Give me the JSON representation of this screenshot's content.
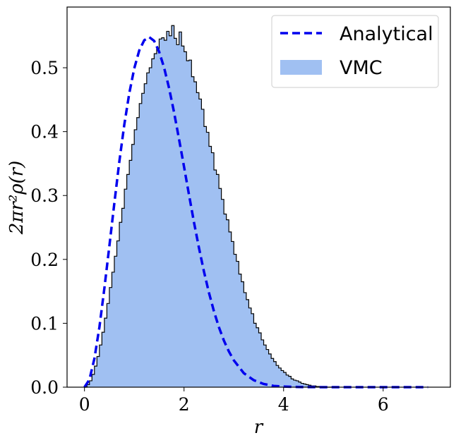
{
  "chart_data": {
    "type": "histogram",
    "xlabel": "r",
    "ylabel": "2πr²ρ(r)",
    "xlim": [
      -0.35,
      7.35
    ],
    "ylim": [
      0,
      0.595
    ],
    "xticks": [
      0,
      2,
      4,
      6
    ],
    "yticks": [
      0.0,
      0.1,
      0.2,
      0.3,
      0.4,
      0.5
    ],
    "ytick_labels": [
      "0.0",
      "0.1",
      "0.2",
      "0.3",
      "0.4",
      "0.5"
    ],
    "legend": {
      "position": "top-right",
      "entries": [
        {
          "label": "Analytical",
          "style": "dashed-line",
          "color": "#0000ee"
        },
        {
          "label": "VMC",
          "style": "filled-patch",
          "color": "#a0c0f2"
        }
      ]
    },
    "series": [
      {
        "name": "Analytical",
        "kind": "dashed-line",
        "color": "#0000ee",
        "x": [
          0,
          0.1,
          0.2,
          0.3,
          0.4,
          0.5,
          0.6,
          0.7,
          0.8,
          0.9,
          1.0,
          1.1,
          1.2,
          1.3,
          1.4,
          1.5,
          1.6,
          1.7,
          1.8,
          1.9,
          2.0,
          2.1,
          2.2,
          2.3,
          2.4,
          2.5,
          2.6,
          2.7,
          2.8,
          2.9,
          3.0,
          3.2,
          3.4,
          3.6,
          3.8,
          4.0,
          4.2,
          4.4,
          4.6,
          4.8,
          5.0,
          5.5,
          6.0,
          6.5,
          6.9
        ],
        "y": [
          0.0,
          0.012,
          0.045,
          0.094,
          0.155,
          0.221,
          0.288,
          0.353,
          0.411,
          0.46,
          0.499,
          0.527,
          0.543,
          0.548,
          0.542,
          0.525,
          0.5,
          0.468,
          0.43,
          0.388,
          0.345,
          0.301,
          0.258,
          0.218,
          0.181,
          0.148,
          0.119,
          0.094,
          0.073,
          0.056,
          0.042,
          0.022,
          0.011,
          0.005,
          0.002,
          0.001,
          0.0005,
          0.0002,
          0.0001,
          0.0,
          0.0,
          0.0,
          0.0,
          0.0,
          0.0
        ]
      },
      {
        "name": "VMC",
        "kind": "step-histogram",
        "color": "#a0c0f2",
        "edge_color": "#000000",
        "bin_width": 0.05,
        "x_start": 0.0,
        "values": [
          0.0,
          0.004,
          0.01,
          0.02,
          0.033,
          0.048,
          0.066,
          0.086,
          0.108,
          0.131,
          0.156,
          0.18,
          0.205,
          0.229,
          0.258,
          0.28,
          0.31,
          0.333,
          0.355,
          0.38,
          0.403,
          0.422,
          0.444,
          0.46,
          0.475,
          0.492,
          0.5,
          0.514,
          0.522,
          0.53,
          0.545,
          0.547,
          0.543,
          0.557,
          0.55,
          0.566,
          0.546,
          0.536,
          0.556,
          0.534,
          0.525,
          0.511,
          0.512,
          0.486,
          0.478,
          0.461,
          0.451,
          0.435,
          0.408,
          0.399,
          0.377,
          0.367,
          0.34,
          0.333,
          0.311,
          0.294,
          0.271,
          0.262,
          0.243,
          0.228,
          0.208,
          0.197,
          0.177,
          0.165,
          0.148,
          0.137,
          0.124,
          0.115,
          0.1,
          0.093,
          0.085,
          0.074,
          0.066,
          0.059,
          0.052,
          0.045,
          0.04,
          0.034,
          0.03,
          0.026,
          0.023,
          0.019,
          0.017,
          0.013,
          0.011,
          0.01,
          0.008,
          0.006,
          0.005,
          0.004,
          0.003,
          0.002,
          0.002,
          0.001,
          0.001,
          0.001,
          0.0,
          0.0,
          0.0,
          0.0
        ]
      }
    ]
  }
}
